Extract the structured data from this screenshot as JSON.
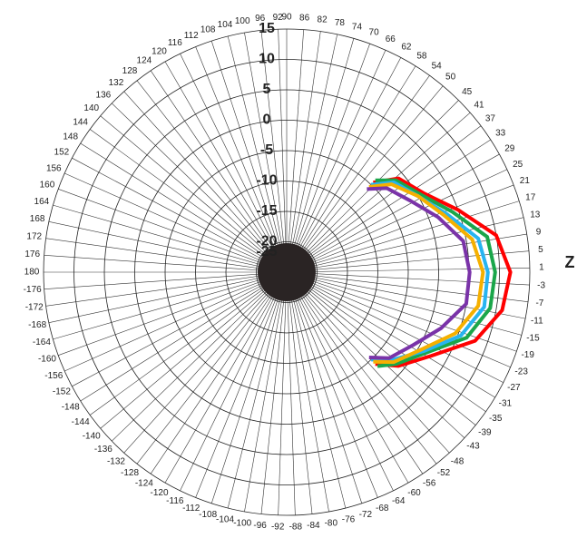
{
  "chart_data": {
    "type": "polar",
    "axis_label": "Z",
    "rlim": [
      -25,
      15
    ],
    "rticks": [
      15,
      10,
      5,
      0,
      -5,
      -10,
      -15,
      -20,
      -25
    ],
    "thetaticks": [
      1,
      5,
      9,
      13,
      17,
      21,
      25,
      29,
      33,
      37,
      41,
      45,
      50,
      54,
      58,
      62,
      66,
      70,
      74,
      78,
      82,
      86,
      90,
      92,
      96,
      100,
      104,
      108,
      112,
      116,
      120,
      124,
      128,
      132,
      136,
      140,
      144,
      148,
      152,
      156,
      160,
      164,
      168,
      172,
      176,
      180,
      -176,
      -172,
      -168,
      -164,
      -160,
      -156,
      -152,
      -148,
      -144,
      -140,
      -136,
      -132,
      -128,
      -124,
      -120,
      -116,
      -112,
      -108,
      -104,
      -100,
      -96,
      -92,
      -88,
      -84,
      -80,
      -76,
      -72,
      -68,
      -64,
      -60,
      -56,
      -52,
      -48,
      -43,
      -39,
      -35,
      -31,
      -27,
      -23,
      -19,
      -15,
      -11,
      -7,
      -3
    ],
    "theta": [
      46,
      40,
      30,
      20,
      10,
      0,
      -10,
      -20,
      -30,
      -40,
      -46
    ],
    "series": [
      {
        "color": "#ff0000",
        "values": [
          -4.5,
          -1,
          1,
          5,
          10,
          11.8,
          11,
          8,
          2.5,
          -1,
          -4
        ]
      },
      {
        "color": "#1aa64a",
        "values": [
          -4,
          -1.5,
          0.5,
          4,
          8.5,
          9.3,
          9,
          6.5,
          1.5,
          -1.5,
          -3.5
        ]
      },
      {
        "color": "#27b4f0",
        "values": [
          -5,
          -2,
          0,
          3,
          7,
          8.1,
          8,
          5.5,
          1,
          -2.5,
          -5
        ]
      },
      {
        "color": "#f5b000",
        "values": [
          -5.5,
          -2.5,
          0,
          2.5,
          6,
          7.3,
          7,
          4.5,
          0.5,
          -2,
          -4.5
        ]
      },
      {
        "color": "#7a33a8",
        "values": [
          -6,
          -3.5,
          -1.5,
          1.5,
          4.5,
          5.1,
          5,
          2,
          -1,
          -3,
          -5.5
        ]
      }
    ]
  }
}
